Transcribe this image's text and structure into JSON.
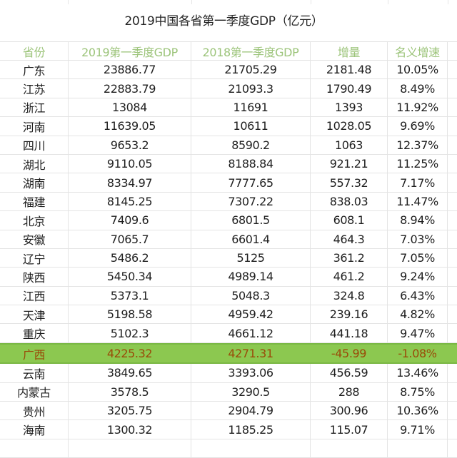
{
  "title": "2019中国各省第一季度GDP（亿元）",
  "headers": [
    "省份",
    "2019第一季度GDP",
    "2018第一季度GDP",
    "增量",
    "名义增速"
  ],
  "colors": {
    "header_text": "#9cc47a",
    "highlight_bg": "#8cc850",
    "highlight_text": "#9a4a08"
  },
  "rows": [
    {
      "province": "广东",
      "gdp2019": "23886.77",
      "gdp2018": "21705.29",
      "increase": "2181.48",
      "growth": "10.05%"
    },
    {
      "province": "江苏",
      "gdp2019": "22883.79",
      "gdp2018": "21093.3",
      "increase": "1790.49",
      "growth": "8.49%"
    },
    {
      "province": "浙江",
      "gdp2019": "13084",
      "gdp2018": "11691",
      "increase": "1393",
      "growth": "11.92%"
    },
    {
      "province": "河南",
      "gdp2019": "11639.05",
      "gdp2018": "10611",
      "increase": "1028.05",
      "growth": "9.69%"
    },
    {
      "province": "四川",
      "gdp2019": "9653.2",
      "gdp2018": "8590.2",
      "increase": "1063",
      "growth": "12.37%"
    },
    {
      "province": "湖北",
      "gdp2019": "9110.05",
      "gdp2018": "8188.84",
      "increase": "921.21",
      "growth": "11.25%"
    },
    {
      "province": "湖南",
      "gdp2019": "8334.97",
      "gdp2018": "7777.65",
      "increase": "557.32",
      "growth": "7.17%"
    },
    {
      "province": "福建",
      "gdp2019": "8145.25",
      "gdp2018": "7307.22",
      "increase": "838.03",
      "growth": "11.47%"
    },
    {
      "province": "北京",
      "gdp2019": "7409.6",
      "gdp2018": "6801.5",
      "increase": "608.1",
      "growth": "8.94%"
    },
    {
      "province": "安徽",
      "gdp2019": "7065.7",
      "gdp2018": "6601.4",
      "increase": "464.3",
      "growth": "7.03%"
    },
    {
      "province": "辽宁",
      "gdp2019": "5486.2",
      "gdp2018": "5125",
      "increase": "361.2",
      "growth": "7.05%"
    },
    {
      "province": "陕西",
      "gdp2019": "5450.34",
      "gdp2018": "4989.14",
      "increase": "461.2",
      "growth": "9.24%"
    },
    {
      "province": "江西",
      "gdp2019": "5373.1",
      "gdp2018": "5048.3",
      "increase": "324.8",
      "growth": "6.43%"
    },
    {
      "province": "天津",
      "gdp2019": "5198.58",
      "gdp2018": "4959.42",
      "increase": "239.16",
      "growth": "4.82%"
    },
    {
      "province": "重庆",
      "gdp2019": "5102.3",
      "gdp2018": "4661.12",
      "increase": "441.18",
      "growth": "9.47%"
    },
    {
      "province": "广西",
      "gdp2019": "4225.32",
      "gdp2018": "4271.31",
      "increase": "-45.99",
      "growth": "-1.08%",
      "highlight": true
    },
    {
      "province": "云南",
      "gdp2019": "3849.65",
      "gdp2018": "3393.06",
      "increase": "456.59",
      "growth": "13.46%"
    },
    {
      "province": "内蒙古",
      "gdp2019": "3578.5",
      "gdp2018": "3290.5",
      "increase": "288",
      "growth": "8.75%"
    },
    {
      "province": "贵州",
      "gdp2019": "3205.75",
      "gdp2018": "2904.79",
      "increase": "300.96",
      "growth": "10.36%"
    },
    {
      "province": "海南",
      "gdp2019": "1300.32",
      "gdp2018": "1185.25",
      "increase": "115.07",
      "growth": "9.71%"
    }
  ]
}
